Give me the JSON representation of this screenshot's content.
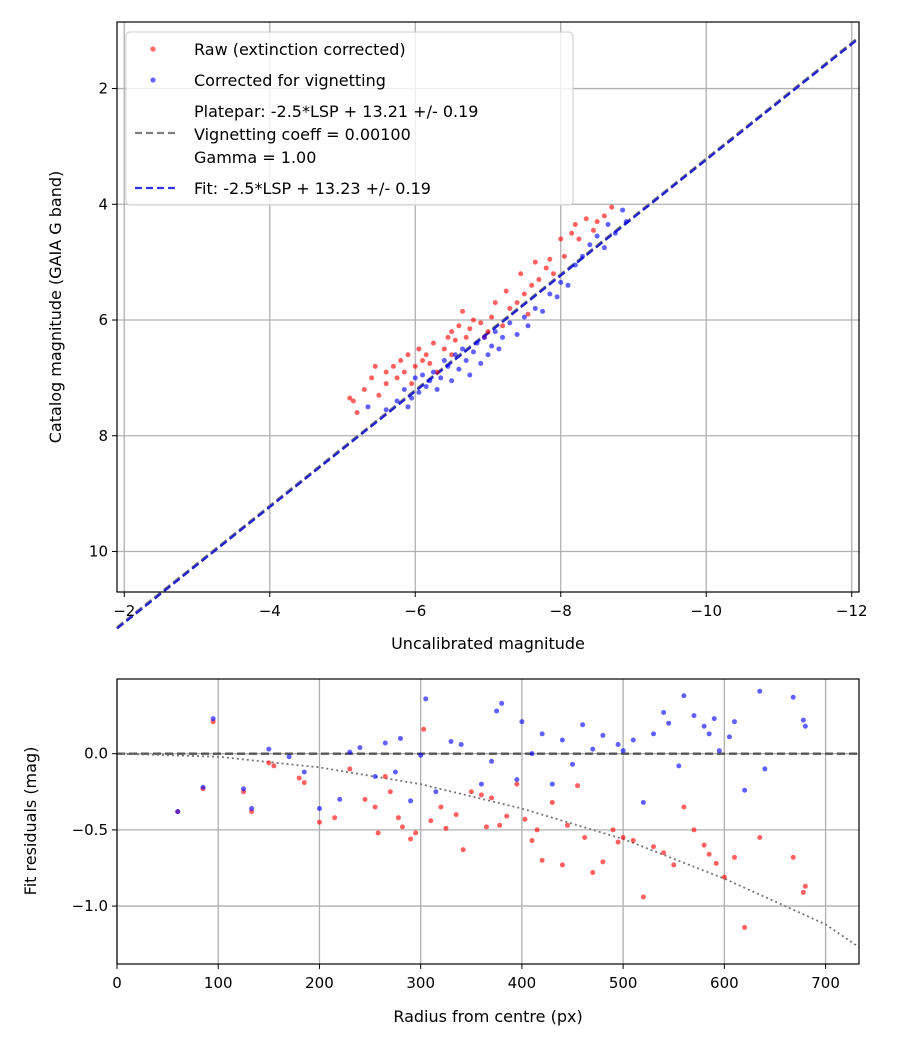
{
  "chart_data": [
    {
      "type": "scatter",
      "xlabel": "Uncalibrated magnitude",
      "ylabel": "Catalog magnitude (GAIA G band)",
      "xlim": [
        -1.9,
        -12.1
      ],
      "ylim": [
        10.7,
        0.85
      ],
      "x_inverted": true,
      "y_inverted": true,
      "xticks": [
        -2,
        -4,
        -6,
        -8,
        -10,
        -12
      ],
      "xtick_labels": [
        "−2",
        "−4",
        "−6",
        "−8",
        "−10",
        "−12"
      ],
      "yticks": [
        2,
        4,
        6,
        8,
        10
      ],
      "ytick_labels": [
        "2",
        "4",
        "6",
        "8",
        "10"
      ],
      "grid": true,
      "legend_position": "top-left",
      "legend": [
        {
          "label": "Raw (extinction corrected)",
          "kind": "marker",
          "color": "#ff0000"
        },
        {
          "label": "Corrected for vignetting",
          "kind": "marker",
          "color": "#0000ff"
        },
        {
          "label": "Platepar: -2.5*LSP + 13.21 +/- 0.19",
          "label2": "Vignetting coeff = 0.00100",
          "label3": "Gamma = 1.00",
          "kind": "dashed-line",
          "color": "#808080"
        },
        {
          "label": "Fit: -2.5*LSP + 13.23 +/- 0.19",
          "kind": "dashed-line",
          "color": "#3333dd"
        }
      ],
      "lines": [
        {
          "name": "Platepar",
          "slope": 1.0,
          "intercept": 13.21,
          "color": "#808080"
        },
        {
          "name": "Fit",
          "slope": 1.0,
          "intercept": 13.23,
          "color": "#2222cc"
        }
      ],
      "series": [
        {
          "name": "Raw (extinction corrected)",
          "color": "#ff0000",
          "points": [
            [
              -5.1,
              7.35
            ],
            [
              -5.15,
              7.4
            ],
            [
              -5.2,
              7.6
            ],
            [
              -5.3,
              7.2
            ],
            [
              -5.4,
              7.0
            ],
            [
              -5.45,
              6.8
            ],
            [
              -5.5,
              7.3
            ],
            [
              -5.6,
              7.1
            ],
            [
              -5.6,
              6.9
            ],
            [
              -5.7,
              6.8
            ],
            [
              -5.75,
              7.0
            ],
            [
              -5.8,
              6.7
            ],
            [
              -5.85,
              6.9
            ],
            [
              -5.9,
              6.6
            ],
            [
              -5.95,
              7.1
            ],
            [
              -6.0,
              6.8
            ],
            [
              -6.05,
              6.5
            ],
            [
              -6.1,
              6.7
            ],
            [
              -6.15,
              6.6
            ],
            [
              -6.2,
              6.75
            ],
            [
              -6.25,
              6.4
            ],
            [
              -6.3,
              6.9
            ],
            [
              -6.4,
              6.5
            ],
            [
              -6.45,
              6.3
            ],
            [
              -6.5,
              6.2
            ],
            [
              -6.5,
              6.6
            ],
            [
              -6.55,
              6.35
            ],
            [
              -6.6,
              6.1
            ],
            [
              -6.65,
              5.85
            ],
            [
              -6.7,
              6.3
            ],
            [
              -6.75,
              6.15
            ],
            [
              -6.8,
              6.0
            ],
            [
              -6.9,
              6.05
            ],
            [
              -6.95,
              6.3
            ],
            [
              -7.0,
              6.2
            ],
            [
              -7.05,
              5.95
            ],
            [
              -7.1,
              5.7
            ],
            [
              -7.2,
              6.1
            ],
            [
              -7.25,
              5.5
            ],
            [
              -7.3,
              5.8
            ],
            [
              -7.4,
              5.7
            ],
            [
              -7.45,
              5.2
            ],
            [
              -7.5,
              5.55
            ],
            [
              -7.55,
              5.9
            ],
            [
              -7.6,
              5.4
            ],
            [
              -7.65,
              5.0
            ],
            [
              -7.7,
              5.3
            ],
            [
              -7.8,
              5.1
            ],
            [
              -7.85,
              4.95
            ],
            [
              -7.9,
              5.2
            ],
            [
              -8.0,
              4.6
            ],
            [
              -8.05,
              4.9
            ],
            [
              -8.15,
              4.5
            ],
            [
              -8.2,
              4.35
            ],
            [
              -8.25,
              4.6
            ],
            [
              -8.35,
              4.25
            ],
            [
              -8.45,
              4.45
            ],
            [
              -8.5,
              4.3
            ],
            [
              -8.6,
              4.2
            ],
            [
              -8.7,
              4.05
            ]
          ]
        },
        {
          "name": "Corrected for vignetting",
          "color": "#0000ff",
          "points": [
            [
              -5.35,
              7.5
            ],
            [
              -5.6,
              7.55
            ],
            [
              -5.75,
              7.4
            ],
            [
              -5.85,
              7.2
            ],
            [
              -5.9,
              7.5
            ],
            [
              -5.95,
              7.35
            ],
            [
              -6.0,
              7.0
            ],
            [
              -6.05,
              7.25
            ],
            [
              -6.1,
              6.95
            ],
            [
              -6.15,
              7.15
            ],
            [
              -6.2,
              7.05
            ],
            [
              -6.25,
              6.9
            ],
            [
              -6.3,
              7.2
            ],
            [
              -6.35,
              7.0
            ],
            [
              -6.4,
              6.7
            ],
            [
              -6.45,
              6.8
            ],
            [
              -6.5,
              7.05
            ],
            [
              -6.55,
              6.6
            ],
            [
              -6.6,
              6.85
            ],
            [
              -6.65,
              6.5
            ],
            [
              -6.7,
              6.7
            ],
            [
              -6.75,
              6.95
            ],
            [
              -6.8,
              6.55
            ],
            [
              -6.85,
              6.4
            ],
            [
              -6.9,
              6.75
            ],
            [
              -6.95,
              6.3
            ],
            [
              -7.0,
              6.6
            ],
            [
              -7.05,
              6.45
            ],
            [
              -7.1,
              6.2
            ],
            [
              -7.15,
              6.5
            ],
            [
              -7.2,
              6.3
            ],
            [
              -7.3,
              6.05
            ],
            [
              -7.4,
              6.25
            ],
            [
              -7.5,
              5.95
            ],
            [
              -7.55,
              6.1
            ],
            [
              -7.65,
              5.8
            ],
            [
              -7.75,
              5.85
            ],
            [
              -7.85,
              5.55
            ],
            [
              -7.95,
              5.6
            ],
            [
              -8.0,
              5.35
            ],
            [
              -8.1,
              5.4
            ],
            [
              -8.2,
              5.05
            ],
            [
              -8.3,
              4.9
            ],
            [
              -8.4,
              4.7
            ],
            [
              -8.5,
              4.55
            ],
            [
              -8.6,
              4.75
            ],
            [
              -8.65,
              4.35
            ],
            [
              -8.75,
              4.5
            ],
            [
              -8.85,
              4.1
            ],
            [
              -8.9,
              4.3
            ]
          ]
        }
      ]
    },
    {
      "type": "scatter",
      "xlabel": "Radius from centre (px)",
      "ylabel": "Fit residuals (mag)",
      "xlim": [
        0,
        733
      ],
      "ylim": [
        -1.38,
        0.49
      ],
      "xticks": [
        0,
        100,
        200,
        300,
        400,
        500,
        600,
        700
      ],
      "xtick_labels": [
        "0",
        "100",
        "200",
        "300",
        "400",
        "500",
        "600",
        "700"
      ],
      "yticks": [
        0.0,
        -0.5,
        -1.0
      ],
      "ytick_labels": [
        "0.0",
        "−0.5",
        "−1.0"
      ],
      "grid": true,
      "lines": [
        {
          "name": "zero",
          "style": "dashed",
          "color": "#555555",
          "points": [
            [
              0,
              0
            ],
            [
              733,
              0
            ]
          ]
        },
        {
          "name": "vignetting model",
          "style": "dotted",
          "color": "#777777",
          "points": [
            [
              0,
              0
            ],
            [
              100,
              -0.02
            ],
            [
              200,
              -0.09
            ],
            [
              300,
              -0.2
            ],
            [
              400,
              -0.36
            ],
            [
              500,
              -0.56
            ],
            [
              600,
              -0.82
            ],
            [
              700,
              -1.12
            ],
            [
              733,
              -1.27
            ]
          ]
        }
      ],
      "series": [
        {
          "name": "Raw",
          "color": "#ff0000",
          "points": [
            [
              60,
              -0.38
            ],
            [
              85,
              -0.23
            ],
            [
              95,
              0.21
            ],
            [
              125,
              -0.25
            ],
            [
              133,
              -0.38
            ],
            [
              150,
              -0.06
            ],
            [
              155,
              -0.08
            ],
            [
              180,
              -0.16
            ],
            [
              185,
              -0.19
            ],
            [
              200,
              -0.45
            ],
            [
              215,
              -0.42
            ],
            [
              230,
              -0.1
            ],
            [
              245,
              -0.3
            ],
            [
              255,
              -0.35
            ],
            [
              258,
              -0.52
            ],
            [
              265,
              -0.15
            ],
            [
              270,
              -0.25
            ],
            [
              278,
              -0.42
            ],
            [
              282,
              -0.48
            ],
            [
              290,
              -0.56
            ],
            [
              295,
              -0.52
            ],
            [
              303,
              0.16
            ],
            [
              310,
              -0.44
            ],
            [
              320,
              -0.35
            ],
            [
              325,
              -0.49
            ],
            [
              335,
              -0.4
            ],
            [
              342,
              -0.63
            ],
            [
              350,
              -0.25
            ],
            [
              360,
              -0.27
            ],
            [
              365,
              -0.48
            ],
            [
              370,
              -0.29
            ],
            [
              378,
              -0.47
            ],
            [
              385,
              -0.41
            ],
            [
              395,
              -0.2
            ],
            [
              403,
              -0.43
            ],
            [
              410,
              -0.57
            ],
            [
              415,
              -0.5
            ],
            [
              420,
              -0.7
            ],
            [
              430,
              -0.32
            ],
            [
              440,
              -0.73
            ],
            [
              445,
              -0.47
            ],
            [
              455,
              -0.21
            ],
            [
              462,
              -0.55
            ],
            [
              470,
              -0.78
            ],
            [
              480,
              -0.71
            ],
            [
              490,
              -0.5
            ],
            [
              495,
              -0.58
            ],
            [
              500,
              -0.55
            ],
            [
              510,
              -0.57
            ],
            [
              520,
              -0.94
            ],
            [
              530,
              -0.61
            ],
            [
              540,
              -0.65
            ],
            [
              550,
              -0.73
            ],
            [
              560,
              -0.35
            ],
            [
              570,
              -0.5
            ],
            [
              580,
              -0.6
            ],
            [
              585,
              -0.66
            ],
            [
              592,
              -0.72
            ],
            [
              600,
              -0.81
            ],
            [
              610,
              -0.68
            ],
            [
              620,
              -1.14
            ],
            [
              635,
              -0.55
            ],
            [
              668,
              -0.68
            ],
            [
              678,
              -0.91
            ],
            [
              680,
              -0.87
            ]
          ]
        },
        {
          "name": "Corrected",
          "color": "#0000ff",
          "points": [
            [
              60,
              -0.38
            ],
            [
              85,
              -0.22
            ],
            [
              95,
              0.23
            ],
            [
              125,
              -0.23
            ],
            [
              133,
              -0.36
            ],
            [
              150,
              0.03
            ],
            [
              170,
              -0.02
            ],
            [
              185,
              -0.12
            ],
            [
              200,
              -0.36
            ],
            [
              220,
              -0.3
            ],
            [
              230,
              0.01
            ],
            [
              240,
              0.04
            ],
            [
              255,
              -0.15
            ],
            [
              265,
              0.07
            ],
            [
              275,
              -0.12
            ],
            [
              280,
              0.1
            ],
            [
              290,
              -0.31
            ],
            [
              300,
              -0.01
            ],
            [
              305,
              0.36
            ],
            [
              315,
              -0.25
            ],
            [
              330,
              0.08
            ],
            [
              340,
              0.06
            ],
            [
              360,
              -0.2
            ],
            [
              370,
              -0.05
            ],
            [
              375,
              0.28
            ],
            [
              380,
              0.33
            ],
            [
              395,
              -0.17
            ],
            [
              400,
              0.21
            ],
            [
              410,
              0.0
            ],
            [
              420,
              0.13
            ],
            [
              430,
              -0.2
            ],
            [
              440,
              0.09
            ],
            [
              450,
              -0.07
            ],
            [
              460,
              0.19
            ],
            [
              470,
              0.03
            ],
            [
              480,
              0.12
            ],
            [
              495,
              0.06
            ],
            [
              500,
              0.02
            ],
            [
              510,
              0.09
            ],
            [
              520,
              -0.32
            ],
            [
              530,
              0.13
            ],
            [
              540,
              0.27
            ],
            [
              545,
              0.2
            ],
            [
              555,
              -0.08
            ],
            [
              560,
              0.38
            ],
            [
              570,
              0.25
            ],
            [
              580,
              0.18
            ],
            [
              585,
              0.13
            ],
            [
              590,
              0.23
            ],
            [
              595,
              0.02
            ],
            [
              605,
              0.11
            ],
            [
              610,
              0.21
            ],
            [
              620,
              -0.24
            ],
            [
              635,
              0.41
            ],
            [
              640,
              -0.1
            ],
            [
              668,
              0.37
            ],
            [
              678,
              0.22
            ],
            [
              680,
              0.18
            ]
          ]
        }
      ]
    }
  ]
}
